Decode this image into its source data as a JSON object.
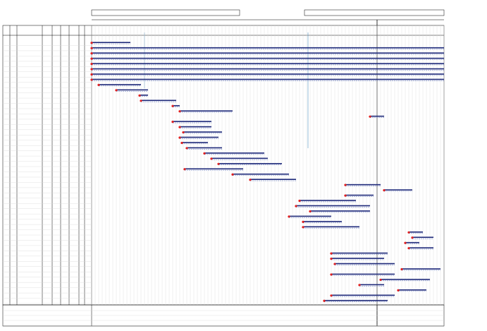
{
  "chart_data": {
    "type": "gantt",
    "categories": [
      null,
      null,
      null,
      null,
      null,
      null,
      null,
      null,
      null,
      null,
      null,
      null,
      null,
      null,
      null,
      null,
      null,
      null,
      null,
      null,
      null,
      null,
      null,
      null,
      null,
      null,
      null,
      null,
      null,
      null,
      null,
      null,
      null,
      null,
      null,
      null,
      null,
      null,
      null,
      null,
      null,
      null,
      null,
      null,
      null,
      null,
      null,
      null,
      null,
      null
    ],
    "start": [
      0,
      0,
      0,
      0,
      0,
      0,
      0,
      0,
      2,
      7,
      13.6,
      14,
      23,
      25,
      79,
      23,
      25,
      26,
      25,
      25.6,
      27,
      32,
      34,
      36,
      26.4,
      40,
      45,
      72,
      83,
      72,
      59,
      58,
      62,
      56,
      60,
      60,
      90,
      91,
      89,
      90,
      68,
      68,
      69,
      88,
      68,
      82,
      76,
      87,
      68,
      66
    ],
    "end": [
      11,
      100,
      100,
      100,
      100,
      100,
      100,
      100,
      14,
      16,
      16,
      24,
      25,
      40,
      83,
      34,
      34,
      37,
      36,
      33,
      37,
      49,
      50,
      54,
      43,
      56,
      58,
      82,
      91,
      80,
      75,
      79,
      79,
      68,
      71,
      76,
      94,
      97,
      93,
      97,
      84,
      83,
      86,
      99,
      86,
      96,
      83,
      95,
      86,
      84
    ],
    "color": "#1f2a7a",
    "xlim": [
      0,
      100
    ]
  }
}
